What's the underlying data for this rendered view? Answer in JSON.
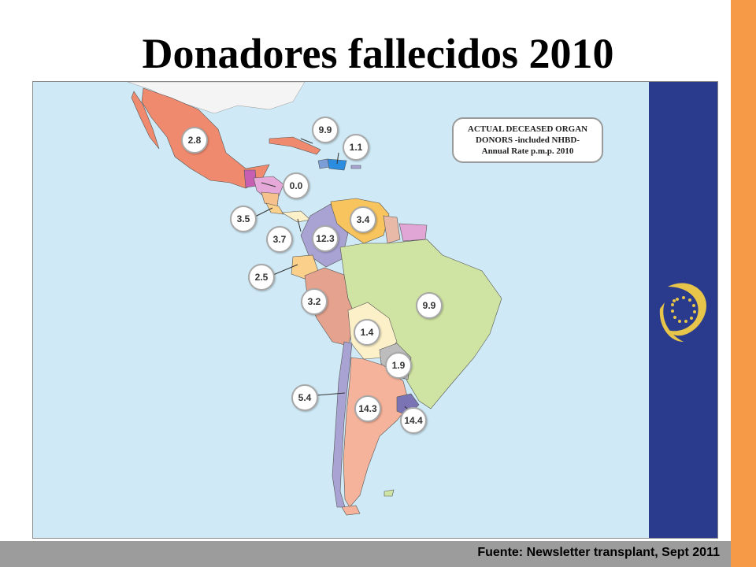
{
  "slide": {
    "title": "Donadores fallecidos 2010",
    "source": "Fuente: Newsletter transplant, Sept 2011"
  },
  "map": {
    "legend": {
      "line1": "ACTUAL DECEASED ORGAN",
      "line2": "DONORS -included NHBD-",
      "line3": "Annual Rate p.m.p. 2010"
    },
    "rates": {
      "mexico": "2.8",
      "cuba": "9.9",
      "dominican_republic": "1.1",
      "central_america": "0.0",
      "costa_rica": "3.5",
      "panama": "3.7",
      "colombia": "12.3",
      "venezuela": "3.4",
      "ecuador": "2.5",
      "peru": "3.2",
      "brazil": "9.9",
      "bolivia": "1.4",
      "paraguay": "1.9",
      "chile": "5.4",
      "argentina": "14.3",
      "uruguay": "14.4"
    },
    "colors": {
      "ocean": "#CFEAF6",
      "mexico": "#F08A6E",
      "brazil": "#CFE3A2",
      "colombia": "#A9A3D4",
      "venezuela": "#F7C45E",
      "peru": "#E5A28E",
      "bolivia": "#FCF0C8",
      "argentina": "#F5B39B",
      "chile": "#A9A3D4",
      "paraguay": "#BDBDBD",
      "uruguay": "#7A74B5",
      "ecuador": "#FAD08A",
      "guianas": "#E1A5D6",
      "eu_panel": "#2A3A8C",
      "accent_bar": "#F79A48",
      "footer_bar": "#9C9C9C"
    },
    "emblem": "council-of-europe-emblem"
  }
}
